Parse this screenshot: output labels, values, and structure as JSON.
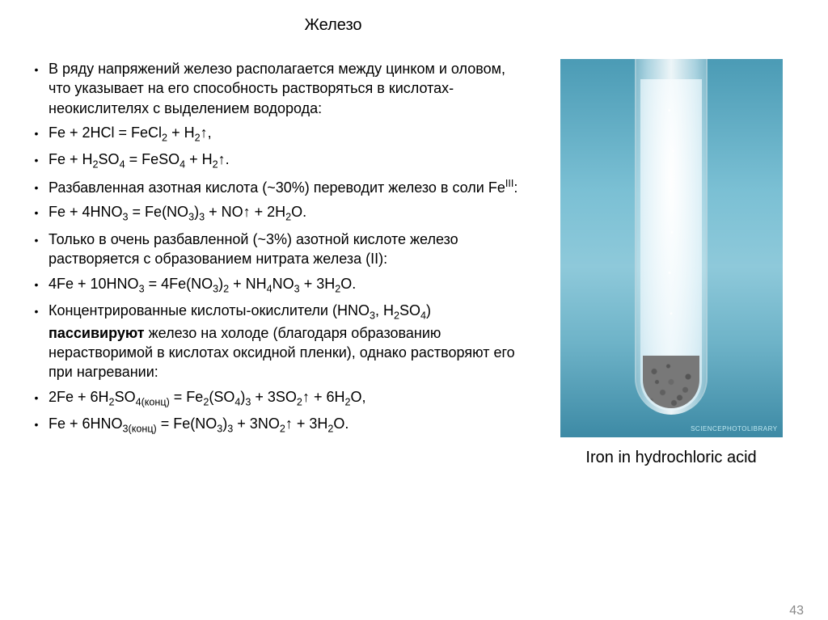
{
  "title": "Железо",
  "bullets": [
    "В ряду напряжений железо располагается между цинком и оловом, что указывает на его способность растворяться в кислотах-неокислителях с выделением водорода:",
    "Fe + 2HCl = FeCl₂ + H₂↑,",
    "Fe + H₂SO₄ = FeSO₄ + H₂↑.",
    "Разбавленная азотная кислота (~30%) переводит железо в соли Feᴵᴵᴵ:",
    "Fe + 4HNO₃ = Fe(NO₃)₃ + NO↑ + 2H₂O.",
    "Только в очень разбавленной (~3%) азотной кислоте железо растворяется с образованием нитрата железа (II):",
    "4Fe + 10HNO₃ = 4Fe(NO₃)₂ + NH₄NO₃ + 3H₂O.",
    "Концентрированные кислоты-окислители (HNO₃, H₂SO₄) пассивируют железо на холоде (благодаря образованию нерастворимой в кислотах оксидной пленки), однако растворяют его при нагревании:",
    "2Fe + 6H₂SO₄(конц) = Fe₂(SO₄)₃ + 3SO₂↑ + 6H₂O,",
    "Fe + 6HNO₃(конц) = Fe(NO₃)₃ + 3NO₂↑ + 3H₂O."
  ],
  "bold_map": [
    false,
    false,
    false,
    false,
    false,
    false,
    false,
    true,
    false,
    false
  ],
  "image": {
    "caption": "Iron in hydrochloric acid",
    "watermark": "SCIENCEPHOTOLIBRARY"
  },
  "page_number": "43",
  "colors": {
    "text": "#000000",
    "bg": "#ffffff",
    "photo_top": "#4b9bb5",
    "photo_bottom": "#3d8aa5"
  },
  "fonts": {
    "body_pt": 18,
    "title_pt": 20,
    "caption_pt": 20
  }
}
